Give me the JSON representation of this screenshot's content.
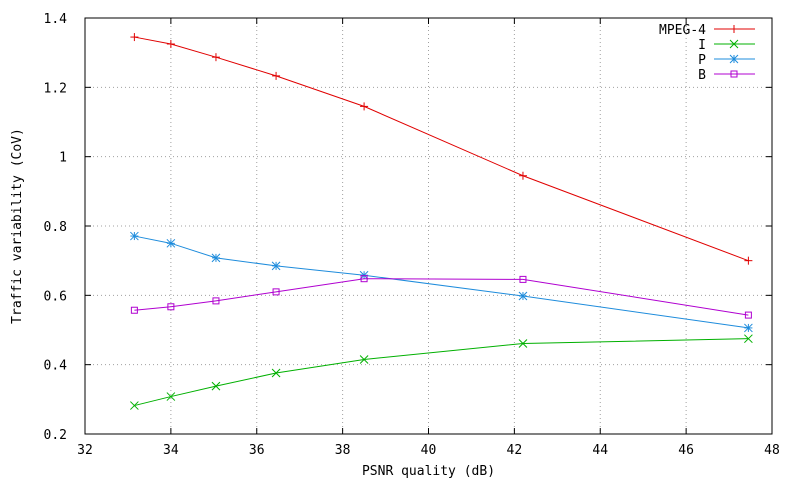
{
  "chart_data": {
    "type": "line",
    "title": "",
    "xlabel": "PSNR quality (dB)",
    "ylabel": "Traffic variability (CoV)",
    "xlim": [
      32,
      48
    ],
    "ylim": [
      0.2,
      1.4
    ],
    "xticks": [
      32,
      34,
      36,
      38,
      40,
      42,
      44,
      46,
      48
    ],
    "yticks": [
      0.2,
      0.4,
      0.6,
      0.8,
      1,
      1.2,
      1.4
    ],
    "xtick_labels": [
      "32",
      "34",
      "36",
      "38",
      "40",
      "42",
      "44",
      "46",
      "48"
    ],
    "ytick_labels": [
      "0.2",
      "0.4",
      "0.6",
      "0.8",
      "1",
      "1.2",
      "1.4"
    ],
    "grid": true,
    "legend_position": "top-right",
    "series": [
      {
        "name": "MPEG-4",
        "color": "#e00000",
        "marker": "plus",
        "x": [
          33.15,
          34.0,
          35.05,
          36.45,
          38.5,
          42.2,
          47.45
        ],
        "y": [
          1.345,
          1.325,
          1.287,
          1.233,
          1.145,
          0.945,
          0.7
        ]
      },
      {
        "name": "I",
        "color": "#00b000",
        "marker": "cross",
        "x": [
          33.15,
          34.0,
          35.05,
          36.45,
          38.5,
          42.2,
          47.45
        ],
        "y": [
          0.282,
          0.308,
          0.338,
          0.376,
          0.415,
          0.461,
          0.475
        ]
      },
      {
        "name": "P",
        "color": "#1e8cdc",
        "marker": "star",
        "x": [
          33.15,
          34.0,
          35.05,
          36.45,
          38.5,
          42.2,
          47.45
        ],
        "y": [
          0.771,
          0.75,
          0.708,
          0.685,
          0.658,
          0.598,
          0.506
        ]
      },
      {
        "name": "B",
        "color": "#b000d0",
        "marker": "square",
        "x": [
          33.15,
          34.0,
          35.05,
          36.45,
          38.5,
          42.2,
          47.45
        ],
        "y": [
          0.557,
          0.567,
          0.584,
          0.61,
          0.648,
          0.646,
          0.543
        ]
      }
    ]
  }
}
